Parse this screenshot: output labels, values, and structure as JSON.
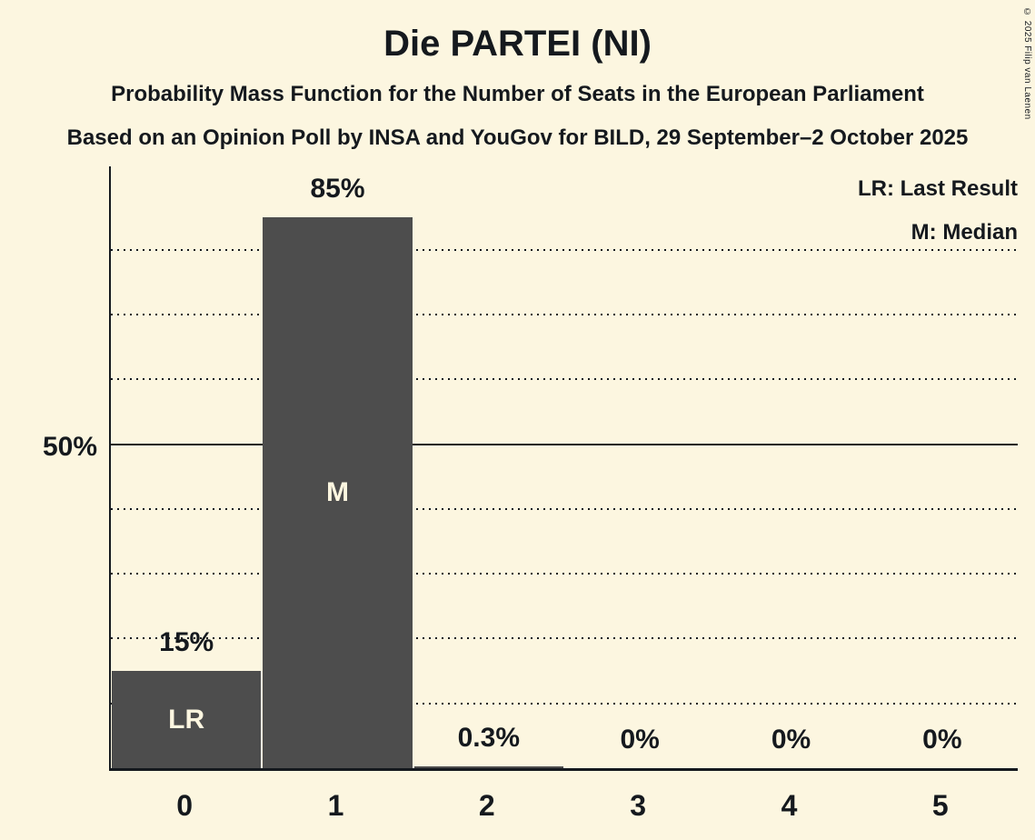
{
  "title": "Die PARTEI (NI)",
  "subtitle": "Probability Mass Function for the Number of Seats in the European Parliament",
  "source_line": "Based on an Opinion Poll by INSA and YouGov for BILD, 29 September–2 October 2025",
  "copyright": "© 2025 Filip van Laenen",
  "legend": {
    "last_result": "LR: Last Result",
    "median": "M: Median"
  },
  "y_axis": {
    "tick_label": "50%",
    "tick_value": 50
  },
  "chart_data": {
    "type": "bar",
    "title": "Die PARTEI (NI)",
    "xlabel": "",
    "ylabel": "",
    "categories": [
      "0",
      "1",
      "2",
      "3",
      "4",
      "5"
    ],
    "values": [
      15,
      85,
      0.3,
      0,
      0,
      0
    ],
    "value_labels": [
      "15%",
      "85%",
      "0.3%",
      "0%",
      "0%",
      "0%"
    ],
    "bar_annotations": [
      "LR",
      "M",
      "",
      "",
      "",
      ""
    ],
    "annotation_key": {
      "LR": "Last Result",
      "M": "Median"
    },
    "ylim": [
      0,
      92.9
    ],
    "gridlines": [
      10,
      20,
      30,
      40,
      50,
      60,
      70,
      80
    ],
    "solid_gridline": 50,
    "grid": "dotted-horizontal",
    "legend_position": "top-right",
    "colors": {
      "background": "#FCF6E0",
      "bar": "#4D4D4D",
      "text": "#15191E",
      "bar_label_text": "#FCF6E0"
    }
  }
}
